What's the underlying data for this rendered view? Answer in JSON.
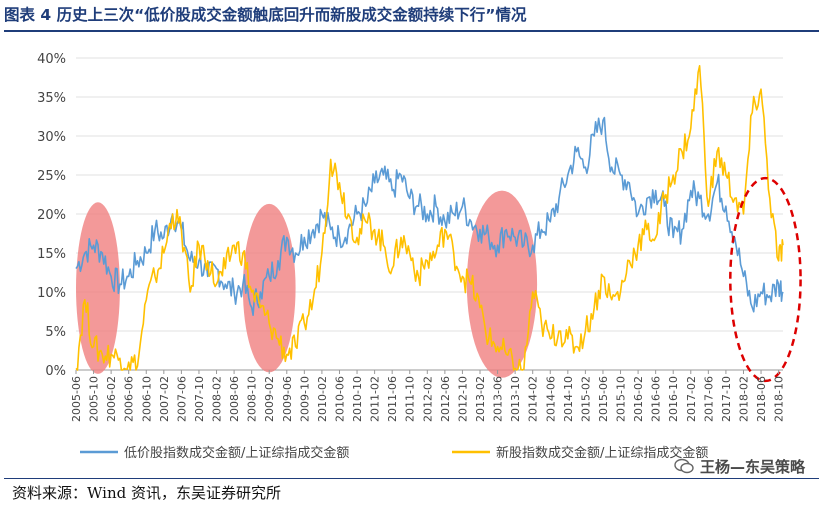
{
  "title": "图表 4 历史上三次“低价股成交金额触底回升而新股成交金额持续下行”情况",
  "source": "资料来源：Wind 资讯，东吴证券研究所",
  "watermark": "王杨—东吴策略",
  "colors": {
    "series1": "#5b9bd5",
    "series2": "#ffc000",
    "highlight_fill": "#f08080",
    "highlight_dashed": "#dd0000",
    "title": "#1f3d7a"
  },
  "chart_data": {
    "type": "line",
    "ylim": [
      0,
      40
    ],
    "yticks": [
      "0%",
      "5%",
      "10%",
      "15%",
      "20%",
      "25%",
      "30%",
      "35%",
      "40%"
    ],
    "x_start": "2005-06",
    "x_end": "2018-11",
    "xticks": [
      "2005-06",
      "2005-10",
      "2006-02",
      "2006-06",
      "2006-10",
      "2007-02",
      "2007-06",
      "2007-10",
      "2008-02",
      "2008-06",
      "2008-10",
      "2009-02",
      "2009-06",
      "2009-10",
      "2010-02",
      "2010-06",
      "2010-10",
      "2011-02",
      "2011-06",
      "2011-10",
      "2012-02",
      "2012-06",
      "2012-10",
      "2013-02",
      "2013-06",
      "2013-10",
      "2014-02",
      "2014-06",
      "2014-10",
      "2015-02",
      "2015-06",
      "2015-10",
      "2016-02",
      "2016-06",
      "2016-10",
      "2017-02",
      "2017-06",
      "2017-10",
      "2018-02",
      "2018-06",
      "2018-10"
    ],
    "series": [
      {
        "name": "低价股指数成交金额/上证综指成交金额",
        "color": "#5b9bd5",
        "points": [
          [
            "2005-06",
            13
          ],
          [
            "2005-08",
            15
          ],
          [
            "2005-10",
            16
          ],
          [
            "2005-12",
            15
          ],
          [
            "2006-02",
            12
          ],
          [
            "2006-04",
            11
          ],
          [
            "2006-06",
            12
          ],
          [
            "2006-08",
            14
          ],
          [
            "2006-10",
            15
          ],
          [
            "2006-12",
            18
          ],
          [
            "2007-02",
            17
          ],
          [
            "2007-04",
            20
          ],
          [
            "2007-06",
            18
          ],
          [
            "2007-08",
            14
          ],
          [
            "2007-10",
            14
          ],
          [
            "2007-12",
            12
          ],
          [
            "2008-02",
            13
          ],
          [
            "2008-04",
            11
          ],
          [
            "2008-06",
            10
          ],
          [
            "2008-08",
            11
          ],
          [
            "2008-10",
            8
          ],
          [
            "2008-12",
            10
          ],
          [
            "2009-02",
            12
          ],
          [
            "2009-04",
            14
          ],
          [
            "2009-06",
            17
          ],
          [
            "2009-08",
            15
          ],
          [
            "2009-10",
            17
          ],
          [
            "2009-12",
            18
          ],
          [
            "2010-02",
            20
          ],
          [
            "2010-04",
            18
          ],
          [
            "2010-06",
            17
          ],
          [
            "2010-08",
            18
          ],
          [
            "2010-10",
            20
          ],
          [
            "2010-12",
            21
          ],
          [
            "2011-02",
            24
          ],
          [
            "2011-04",
            25
          ],
          [
            "2011-06",
            23
          ],
          [
            "2011-08",
            25
          ],
          [
            "2011-10",
            22
          ],
          [
            "2011-12",
            21
          ],
          [
            "2012-02",
            20
          ],
          [
            "2012-04",
            21
          ],
          [
            "2012-06",
            19
          ],
          [
            "2012-08",
            20
          ],
          [
            "2012-10",
            21
          ],
          [
            "2012-12",
            19
          ],
          [
            "2013-02",
            18
          ],
          [
            "2013-04",
            17
          ],
          [
            "2013-06",
            16
          ],
          [
            "2013-08",
            18
          ],
          [
            "2013-10",
            17
          ],
          [
            "2013-12",
            16
          ],
          [
            "2014-02",
            16
          ],
          [
            "2014-04",
            18
          ],
          [
            "2014-06",
            19
          ],
          [
            "2014-08",
            22
          ],
          [
            "2014-10",
            25
          ],
          [
            "2014-12",
            28
          ],
          [
            "2015-02",
            26
          ],
          [
            "2015-04",
            30
          ],
          [
            "2015-06",
            32
          ],
          [
            "2015-08",
            26
          ],
          [
            "2015-10",
            25
          ],
          [
            "2015-12",
            24
          ],
          [
            "2016-02",
            20
          ],
          [
            "2016-04",
            22
          ],
          [
            "2016-06",
            23
          ],
          [
            "2016-08",
            21
          ],
          [
            "2016-10",
            17
          ],
          [
            "2016-12",
            18
          ],
          [
            "2017-02",
            23
          ],
          [
            "2017-04",
            22
          ],
          [
            "2017-06",
            20
          ],
          [
            "2017-08",
            24
          ],
          [
            "2017-10",
            21
          ],
          [
            "2017-12",
            17
          ],
          [
            "2018-02",
            12
          ],
          [
            "2018-04",
            8
          ],
          [
            "2018-06",
            10
          ],
          [
            "2018-08",
            9.5
          ],
          [
            "2018-10",
            11
          ],
          [
            "2018-11",
            10
          ]
        ]
      },
      {
        "name": "新股指数成交金额/上证综指成交金额",
        "color": "#ffc000",
        "points": [
          [
            "2005-06",
            0.2
          ],
          [
            "2005-08",
            9
          ],
          [
            "2005-10",
            3
          ],
          [
            "2005-12",
            2
          ],
          [
            "2006-02",
            2
          ],
          [
            "2006-04",
            1.5
          ],
          [
            "2006-06",
            1
          ],
          [
            "2006-08",
            0.5
          ],
          [
            "2006-10",
            9
          ],
          [
            "2006-12",
            12
          ],
          [
            "2007-02",
            15
          ],
          [
            "2007-04",
            20
          ],
          [
            "2007-06",
            18
          ],
          [
            "2007-08",
            10
          ],
          [
            "2007-10",
            16
          ],
          [
            "2007-12",
            14
          ],
          [
            "2008-02",
            11
          ],
          [
            "2008-04",
            13
          ],
          [
            "2008-06",
            16
          ],
          [
            "2008-08",
            15
          ],
          [
            "2008-10",
            10
          ],
          [
            "2008-12",
            8
          ],
          [
            "2009-02",
            6
          ],
          [
            "2009-04",
            4
          ],
          [
            "2009-06",
            2
          ],
          [
            "2009-08",
            3
          ],
          [
            "2009-10",
            6
          ],
          [
            "2009-12",
            9
          ],
          [
            "2010-02",
            15
          ],
          [
            "2010-04",
            27
          ],
          [
            "2010-06",
            24
          ],
          [
            "2010-08",
            20
          ],
          [
            "2010-10",
            17
          ],
          [
            "2010-12",
            19
          ],
          [
            "2011-02",
            18
          ],
          [
            "2011-04",
            16
          ],
          [
            "2011-06",
            13
          ],
          [
            "2011-08",
            17
          ],
          [
            "2011-10",
            15
          ],
          [
            "2011-12",
            12
          ],
          [
            "2012-02",
            14
          ],
          [
            "2012-04",
            15
          ],
          [
            "2012-06",
            18
          ],
          [
            "2012-08",
            15
          ],
          [
            "2012-10",
            12
          ],
          [
            "2012-12",
            11
          ],
          [
            "2013-02",
            8
          ],
          [
            "2013-04",
            4
          ],
          [
            "2013-06",
            3
          ],
          [
            "2013-08",
            2
          ],
          [
            "2013-10",
            0.2
          ],
          [
            "2013-12",
            0.1
          ],
          [
            "2014-02",
            10
          ],
          [
            "2014-04",
            6
          ],
          [
            "2014-06",
            4
          ],
          [
            "2014-08",
            5
          ],
          [
            "2014-10",
            4
          ],
          [
            "2014-12",
            3
          ],
          [
            "2015-02",
            5
          ],
          [
            "2015-04",
            8
          ],
          [
            "2015-06",
            12
          ],
          [
            "2015-08",
            9
          ],
          [
            "2015-10",
            10
          ],
          [
            "2015-12",
            14
          ],
          [
            "2016-02",
            16
          ],
          [
            "2016-04",
            18
          ],
          [
            "2016-06",
            17
          ],
          [
            "2016-08",
            22
          ],
          [
            "2016-10",
            25
          ],
          [
            "2016-12",
            28
          ],
          [
            "2017-02",
            31
          ],
          [
            "2017-04",
            39
          ],
          [
            "2017-06",
            21
          ],
          [
            "2017-08",
            28
          ],
          [
            "2017-10",
            25
          ],
          [
            "2017-12",
            22
          ],
          [
            "2018-02",
            20
          ],
          [
            "2018-04",
            33
          ],
          [
            "2018-06",
            36
          ],
          [
            "2018-08",
            22
          ],
          [
            "2018-10",
            14
          ],
          [
            "2018-11",
            16
          ]
        ]
      }
    ],
    "highlights": [
      {
        "kind": "filled",
        "center": "2005-11",
        "y_center": 10.5,
        "half_width_months": 5,
        "half_height": 11
      },
      {
        "kind": "filled",
        "center": "2009-02",
        "y_center": 10.5,
        "half_width_months": 6,
        "half_height": 10.8
      },
      {
        "kind": "filled",
        "center": "2013-07",
        "y_center": 11,
        "half_width_months": 8,
        "half_height": 12
      },
      {
        "kind": "dashed",
        "center": "2018-07",
        "y_center": 11.6,
        "half_width_months": 8,
        "half_height": 13
      }
    ]
  }
}
